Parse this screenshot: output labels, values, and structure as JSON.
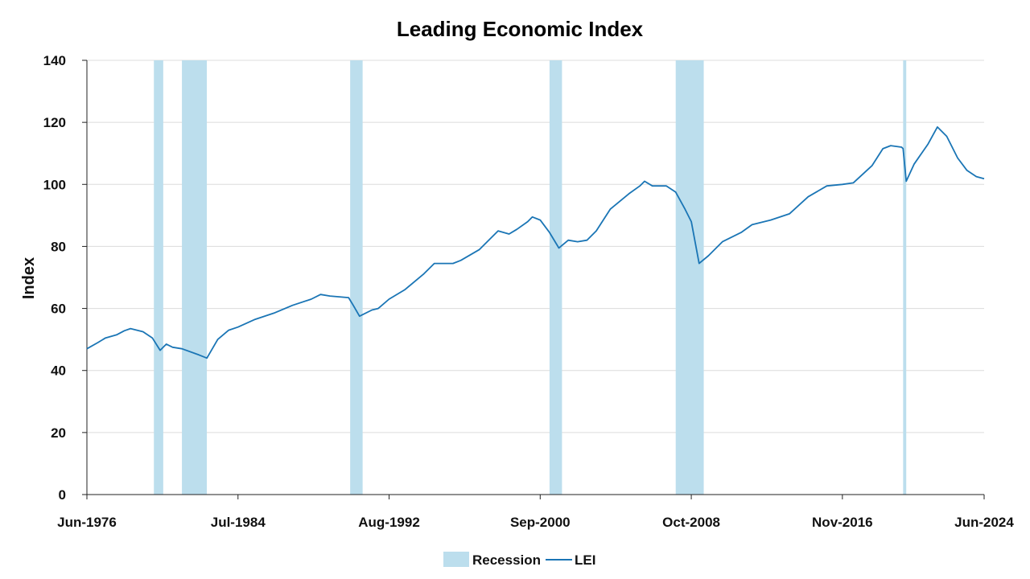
{
  "chart_data": {
    "type": "line",
    "title": "Leading Economic Index",
    "xlabel": "",
    "ylabel": "Index",
    "ylim": [
      0,
      140
    ],
    "yticks": [
      0,
      20,
      40,
      60,
      80,
      100,
      120,
      140
    ],
    "xlim": [
      "1976-06",
      "2024-06"
    ],
    "xticks": [
      "Jun-1976",
      "Jul-1984",
      "Aug-1992",
      "Sep-2000",
      "Oct-2008",
      "Nov-2016",
      "Jun-2024"
    ],
    "grid": true,
    "legend": {
      "placement": "bottom-center",
      "entries": [
        "Recession",
        "LEI"
      ]
    },
    "colors": {
      "line": "#1a75b5",
      "recession": "#bcdeed",
      "grid": "#dcdcdc",
      "axis": "#222222"
    },
    "recessions": [
      {
        "start": "1980-01",
        "end": "1980-07"
      },
      {
        "start": "1981-07",
        "end": "1982-11"
      },
      {
        "start": "1990-07",
        "end": "1991-03"
      },
      {
        "start": "2001-03",
        "end": "2001-11"
      },
      {
        "start": "2007-12",
        "end": "2009-06"
      },
      {
        "start": "2020-02",
        "end": "2020-04"
      }
    ],
    "series": [
      {
        "name": "LEI",
        "points": [
          [
            "1976-06",
            47.0
          ],
          [
            "1977-01",
            49.0
          ],
          [
            "1977-06",
            50.5
          ],
          [
            "1978-01",
            51.5
          ],
          [
            "1978-06",
            52.8
          ],
          [
            "1978-10",
            53.5
          ],
          [
            "1979-06",
            52.5
          ],
          [
            "1979-12",
            50.5
          ],
          [
            "1980-05",
            46.5
          ],
          [
            "1980-09",
            48.5
          ],
          [
            "1981-01",
            47.5
          ],
          [
            "1981-07",
            47.0
          ],
          [
            "1982-06",
            45.0
          ],
          [
            "1982-11",
            44.0
          ],
          [
            "1983-06",
            50.0
          ],
          [
            "1984-01",
            53.0
          ],
          [
            "1984-07",
            54.0
          ],
          [
            "1985-06",
            56.5
          ],
          [
            "1986-06",
            58.5
          ],
          [
            "1987-06",
            61.0
          ],
          [
            "1988-06",
            63.0
          ],
          [
            "1988-12",
            64.5
          ],
          [
            "1989-06",
            64.0
          ],
          [
            "1990-06",
            63.5
          ],
          [
            "1990-09",
            61.0
          ],
          [
            "1991-01",
            57.5
          ],
          [
            "1991-09",
            59.5
          ],
          [
            "1992-01",
            60.0
          ],
          [
            "1992-08",
            63.0
          ],
          [
            "1993-06",
            66.0
          ],
          [
            "1994-06",
            71.0
          ],
          [
            "1995-01",
            74.5
          ],
          [
            "1995-06",
            74.5
          ],
          [
            "1996-01",
            74.5
          ],
          [
            "1996-06",
            75.5
          ],
          [
            "1997-06",
            79.0
          ],
          [
            "1998-06",
            85.0
          ],
          [
            "1999-01",
            84.0
          ],
          [
            "1999-06",
            85.5
          ],
          [
            "2000-01",
            88.0
          ],
          [
            "2000-04",
            89.5
          ],
          [
            "2000-09",
            88.5
          ],
          [
            "2001-03",
            84.5
          ],
          [
            "2001-09",
            79.5
          ],
          [
            "2002-03",
            82.0
          ],
          [
            "2002-09",
            81.5
          ],
          [
            "2003-03",
            82.0
          ],
          [
            "2003-09",
            85.0
          ],
          [
            "2004-06",
            92.0
          ],
          [
            "2005-06",
            97.0
          ],
          [
            "2006-01",
            99.5
          ],
          [
            "2006-04",
            101.0
          ],
          [
            "2006-09",
            99.5
          ],
          [
            "2007-06",
            99.5
          ],
          [
            "2007-12",
            97.5
          ],
          [
            "2008-06",
            92.0
          ],
          [
            "2008-10",
            88.0
          ],
          [
            "2009-03",
            74.5
          ],
          [
            "2009-09",
            77.0
          ],
          [
            "2010-06",
            81.5
          ],
          [
            "2011-06",
            84.5
          ],
          [
            "2012-01",
            87.0
          ],
          [
            "2013-01",
            88.5
          ],
          [
            "2014-01",
            90.5
          ],
          [
            "2015-01",
            96.0
          ],
          [
            "2016-01",
            99.5
          ],
          [
            "2016-11",
            100.0
          ],
          [
            "2017-06",
            100.5
          ],
          [
            "2018-06",
            106.0
          ],
          [
            "2019-01",
            111.5
          ],
          [
            "2019-06",
            112.5
          ],
          [
            "2020-01",
            112.0
          ],
          [
            "2020-02",
            111.5
          ],
          [
            "2020-04",
            101.0
          ],
          [
            "2020-09",
            106.5
          ],
          [
            "2021-06",
            113.0
          ],
          [
            "2021-12",
            118.5
          ],
          [
            "2022-06",
            115.5
          ],
          [
            "2023-01",
            108.5
          ],
          [
            "2023-07",
            104.5
          ],
          [
            "2024-01",
            102.5
          ],
          [
            "2024-06",
            101.8
          ]
        ]
      }
    ]
  }
}
